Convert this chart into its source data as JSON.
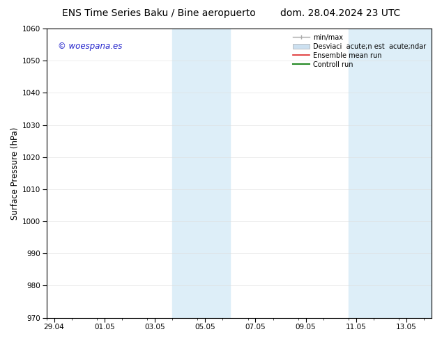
{
  "title_left": "ENS Time Series Baku / Bine aeropuerto",
  "title_right": "dom. 28.04.2024 23 UTC",
  "ylabel": "Surface Pressure (hPa)",
  "ylim": [
    970,
    1060
  ],
  "yticks": [
    970,
    980,
    990,
    1000,
    1010,
    1020,
    1030,
    1040,
    1050,
    1060
  ],
  "xtick_days": [
    0,
    2,
    4,
    6,
    8,
    10,
    12,
    14
  ],
  "xtick_labels": [
    "29.04",
    "01.05",
    "03.05",
    "05.05",
    "07.05",
    "09.05",
    "11.05",
    "13.05"
  ],
  "xlim": [
    -0.3,
    15.0
  ],
  "shaded_color": "#ddeef8",
  "background_color": "#ffffff",
  "watermark_text": "© woespana.es",
  "watermark_color": "#2222cc",
  "legend_label_minmax": "min/max",
  "legend_label_std": "Desviaci  acute;n est  acute;ndar",
  "legend_label_ensemble": "Ensemble mean run",
  "legend_label_control": "Controll run",
  "title_fontsize": 10,
  "tick_fontsize": 7.5,
  "label_fontsize": 8.5,
  "legend_fontsize": 7
}
